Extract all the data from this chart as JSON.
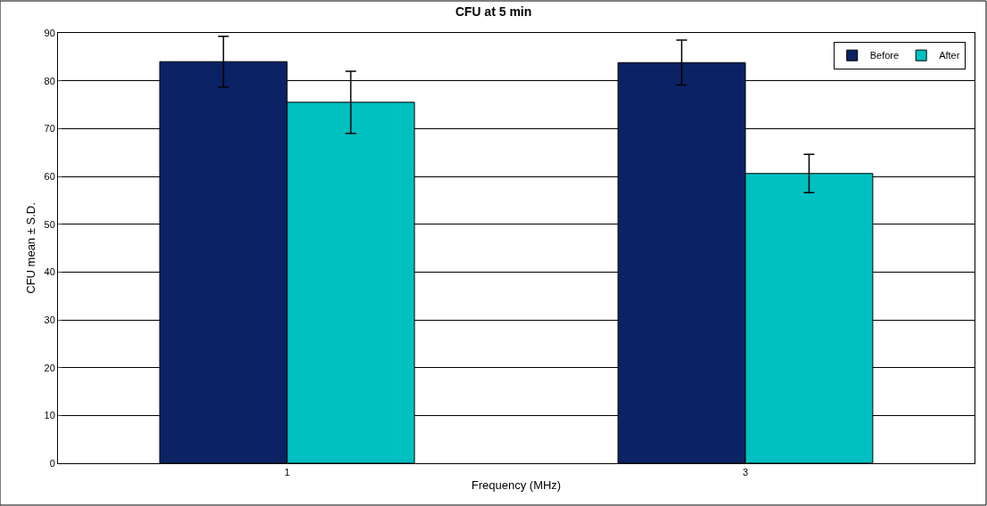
{
  "chart_data": {
    "type": "bar",
    "title": "CFU at 5 min",
    "xlabel": "Frequency (MHz)",
    "ylabel": "CFU mean ± S.D.",
    "categories": [
      "1",
      "3"
    ],
    "series": [
      {
        "name": "Before",
        "color": "#0b2364",
        "values": [
          84.0,
          83.8
        ],
        "errors": [
          5.3,
          4.7
        ]
      },
      {
        "name": "After",
        "color": "#00c0c0",
        "values": [
          75.5,
          60.6
        ],
        "errors": [
          6.5,
          4.0
        ]
      }
    ],
    "ylim": [
      0,
      90
    ],
    "yticks": [
      0,
      10,
      20,
      30,
      40,
      50,
      60,
      70,
      80,
      90
    ],
    "grid": "y",
    "legend": "top right"
  }
}
